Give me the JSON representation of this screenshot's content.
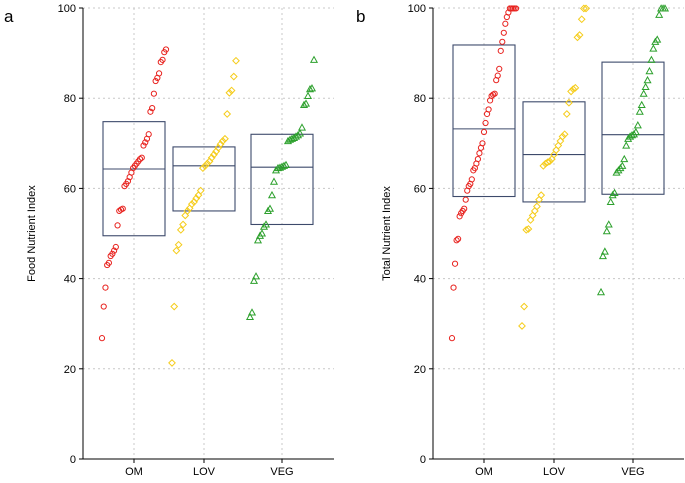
{
  "chart_data": [
    {
      "type": "scatter",
      "panel_label": "a",
      "ylabel": "Food Nutrient Index",
      "xlabel": "",
      "categories": [
        "OM",
        "LOV",
        "VEG"
      ],
      "ylim": [
        0,
        100
      ],
      "yticks": [
        0,
        20,
        40,
        60,
        80,
        100
      ],
      "grid": true,
      "boxes": [
        {
          "group": "OM",
          "lower": 49.5,
          "median": 64.3,
          "upper": 74.8
        },
        {
          "group": "LOV",
          "lower": 55.0,
          "median": 65.0,
          "upper": 69.2
        },
        {
          "group": "VEG",
          "lower": 52.0,
          "median": 64.7,
          "upper": 72.0
        }
      ],
      "series": [
        {
          "name": "OM",
          "marker": "circle",
          "color": "#e8231f",
          "values": [
            26.8,
            33.8,
            38.0,
            43.0,
            43.5,
            45.0,
            45.5,
            46.2,
            47.0,
            51.8,
            55.0,
            55.3,
            55.5,
            60.5,
            61.0,
            61.6,
            62.5,
            63.5,
            64.5,
            65.0,
            65.5,
            66.0,
            66.5,
            66.8,
            69.5,
            70.2,
            71.0,
            72.0,
            77.0,
            77.8,
            81.0,
            83.8,
            84.5,
            85.5,
            88.0,
            88.5,
            90.2,
            90.8
          ]
        },
        {
          "name": "LOV",
          "marker": "diamond",
          "color": "#f5cc1a",
          "values": [
            21.3,
            33.8,
            46.2,
            47.5,
            50.8,
            52.0,
            54.0,
            55.0,
            55.6,
            56.5,
            57.0,
            57.8,
            58.5,
            59.5,
            64.5,
            65.0,
            65.5,
            66.0,
            66.8,
            67.5,
            68.2,
            69.0,
            69.8,
            70.5,
            71.0,
            76.5,
            81.2,
            81.7,
            84.8,
            88.3
          ]
        },
        {
          "name": "VEG",
          "marker": "triangle",
          "color": "#2ca02c",
          "values": [
            31.5,
            32.5,
            39.5,
            40.5,
            48.5,
            49.5,
            50.0,
            51.5,
            52.0,
            55.0,
            55.5,
            58.5,
            61.5,
            64.0,
            64.5,
            64.6,
            64.8,
            65.0,
            65.2,
            70.5,
            70.8,
            71.0,
            71.2,
            71.5,
            71.8,
            72.2,
            73.5,
            78.5,
            78.8,
            80.5,
            82.0,
            82.2,
            88.5
          ]
        }
      ]
    },
    {
      "type": "scatter",
      "panel_label": "b",
      "ylabel": "Total Nutrient Index",
      "xlabel": "",
      "categories": [
        "OM",
        "LOV",
        "VEG"
      ],
      "ylim": [
        0,
        100
      ],
      "yticks": [
        0,
        20,
        40,
        60,
        80,
        100
      ],
      "grid": true,
      "boxes": [
        {
          "group": "OM",
          "lower": 58.2,
          "median": 73.2,
          "upper": 91.8
        },
        {
          "group": "LOV",
          "lower": 57.0,
          "median": 67.5,
          "upper": 79.2
        },
        {
          "group": "VEG",
          "lower": 58.7,
          "median": 71.9,
          "upper": 88.0
        }
      ],
      "series": [
        {
          "name": "OM",
          "marker": "circle",
          "color": "#e8231f",
          "values": [
            26.8,
            38.0,
            43.3,
            48.5,
            48.8,
            53.8,
            54.5,
            55.0,
            55.5,
            57.5,
            59.5,
            60.5,
            61.0,
            62.0,
            64.0,
            64.5,
            65.5,
            66.5,
            67.8,
            69.0,
            70.0,
            72.5,
            74.5,
            76.5,
            77.5,
            79.5,
            80.5,
            80.8,
            81.0,
            84.0,
            85.0,
            86.5,
            90.5,
            92.5,
            94.5,
            96.5,
            98.0,
            99.0,
            99.9,
            99.9,
            99.9,
            99.9,
            99.9
          ]
        },
        {
          "name": "LOV",
          "marker": "diamond",
          "color": "#f5cc1a",
          "values": [
            29.5,
            33.8,
            50.8,
            51.0,
            53.0,
            54.0,
            55.0,
            56.0,
            57.5,
            58.5,
            65.0,
            65.5,
            65.8,
            66.0,
            66.5,
            67.5,
            68.5,
            69.5,
            70.5,
            71.5,
            72.0,
            76.5,
            79.0,
            81.5,
            82.0,
            82.3,
            93.5,
            94.0,
            97.5,
            99.9,
            99.9
          ]
        },
        {
          "name": "VEG",
          "marker": "triangle",
          "color": "#2ca02c",
          "values": [
            37.0,
            45.0,
            46.0,
            50.5,
            52.0,
            57.0,
            58.5,
            59.0,
            63.5,
            64.0,
            64.5,
            65.0,
            66.5,
            69.5,
            71.0,
            71.5,
            71.8,
            72.0,
            72.5,
            74.0,
            77.0,
            78.5,
            81.0,
            82.5,
            84.0,
            86.0,
            88.5,
            91.0,
            92.5,
            93.0,
            98.5,
            99.9,
            99.9,
            99.9
          ]
        }
      ]
    }
  ]
}
